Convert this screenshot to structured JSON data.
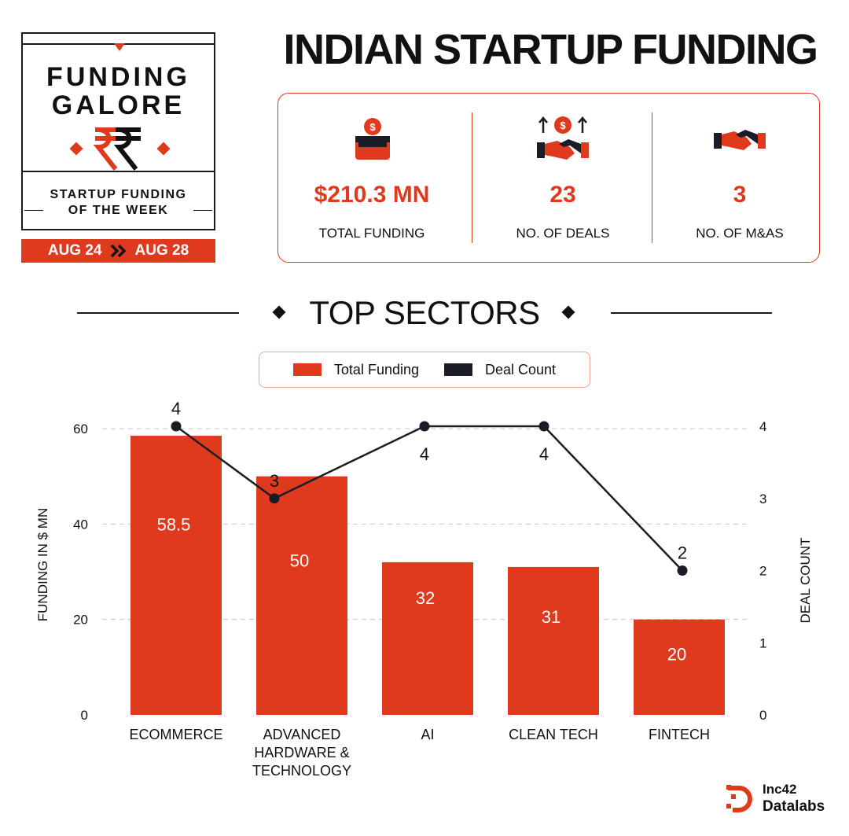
{
  "badge": {
    "line1": "FUNDING",
    "line2": "GALORE",
    "sub1": "STARTUP FUNDING",
    "sub2": "OF THE WEEK",
    "date_from": "AUG 24",
    "date_to": "AUG 28",
    "icon": "rupee-icon"
  },
  "title": "INDIAN STARTUP FUNDING",
  "stats": [
    {
      "value": "$210.3 MN",
      "label": "TOTAL FUNDING",
      "icon": "money-box-icon"
    },
    {
      "value": "23",
      "label": "NO. OF DEALS",
      "icon": "handshake-deal-icon"
    },
    {
      "value": "3",
      "label": "NO. OF M&AS",
      "icon": "handshake-icon"
    }
  ],
  "section_title": "TOP SECTORS",
  "legend": {
    "funding": "Total Funding",
    "deals": "Deal Count"
  },
  "colors": {
    "accent": "#e03a1e",
    "dark": "#1a1c26"
  },
  "chart_data": {
    "type": "bar",
    "categories": [
      "ECOMMERCE",
      "ADVANCED HARDWARE & TECHNOLOGY",
      "AI",
      "CLEAN TECH",
      "FINTECH"
    ],
    "category_lines": [
      [
        "ECOMMERCE"
      ],
      [
        "ADVANCED",
        "HARDWARE &",
        "TECHNOLOGY"
      ],
      [
        "AI"
      ],
      [
        "CLEAN TECH"
      ],
      [
        "FINTECH"
      ]
    ],
    "series": [
      {
        "name": "Total Funding",
        "type": "bar",
        "axis": "left",
        "values": [
          58.5,
          50,
          32,
          31,
          20
        ],
        "labels": [
          "58.5",
          "50",
          "32",
          "31",
          "20"
        ]
      },
      {
        "name": "Deal Count",
        "type": "line",
        "axis": "right",
        "values": [
          4,
          3,
          4,
          4,
          2
        ]
      }
    ],
    "ylabel": "FUNDING IN $ MN",
    "y2label": "DEAL COUNT",
    "ylim": [
      0,
      60
    ],
    "yticks": [
      0,
      20,
      40,
      60
    ],
    "y2lim": [
      0,
      4
    ],
    "y2ticks": [
      0,
      1,
      2,
      3,
      4
    ],
    "grid": true,
    "legend": "top-center"
  },
  "footer": {
    "brand1": "Inc42",
    "brand2": "Datalabs",
    "icon": "inc42-logo-icon"
  }
}
